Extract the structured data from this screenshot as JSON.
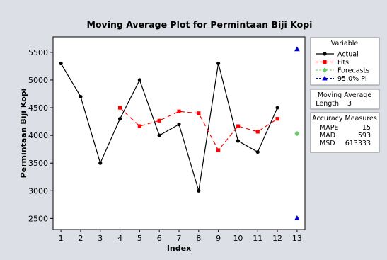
{
  "chart_data": {
    "type": "line",
    "title": "Moving Average Plot for Permintaan Biji Kopi",
    "xlabel": "Index",
    "ylabel": "Permintaan Biji Kopi",
    "xlim": [
      0.6,
      13.4
    ],
    "ylim": [
      2300,
      5780
    ],
    "x_ticks": [
      1,
      2,
      3,
      4,
      5,
      6,
      7,
      8,
      9,
      10,
      11,
      12,
      13
    ],
    "y_ticks": [
      2500,
      3000,
      3500,
      4000,
      4500,
      5000,
      5500
    ],
    "grid": false,
    "legend_position": "right",
    "series": [
      {
        "name": "Actual",
        "color": "#000000",
        "marker": "circle",
        "line": "solid",
        "x": [
          1,
          2,
          3,
          4,
          5,
          6,
          7,
          8,
          9,
          10,
          11,
          12
        ],
        "values": [
          5300,
          4700,
          3500,
          4300,
          5000,
          4000,
          4200,
          3000,
          5300,
          3900,
          3700,
          4500
        ]
      },
      {
        "name": "Fits",
        "color": "#ff0000",
        "marker": "square",
        "line": "dashed",
        "x": [
          4,
          5,
          6,
          7,
          8,
          9,
          10,
          11,
          12
        ],
        "values": [
          4500,
          4167,
          4267,
          4433,
          4400,
          3733,
          4167,
          4067,
          4300
        ]
      },
      {
        "name": "Forecasts",
        "color": "#66cc66",
        "marker": "diamond",
        "line": "none",
        "x": [
          13
        ],
        "values": [
          4033
        ]
      },
      {
        "name": "95.0% PI",
        "color": "#0000cc",
        "marker": "triangle",
        "line": "none",
        "x": [
          13,
          13
        ],
        "values": [
          5560,
          2507
        ]
      }
    ],
    "legend_title": "Variable",
    "moving_average": {
      "title": "Moving Average",
      "length_label": "Length",
      "length_value": "3"
    },
    "accuracy": {
      "title": "Accuracy Measures",
      "rows": [
        {
          "label": "MAPE",
          "value": "15"
        },
        {
          "label": "MAD",
          "value": "593"
        },
        {
          "label": "MSD",
          "value": "613333"
        }
      ]
    }
  }
}
